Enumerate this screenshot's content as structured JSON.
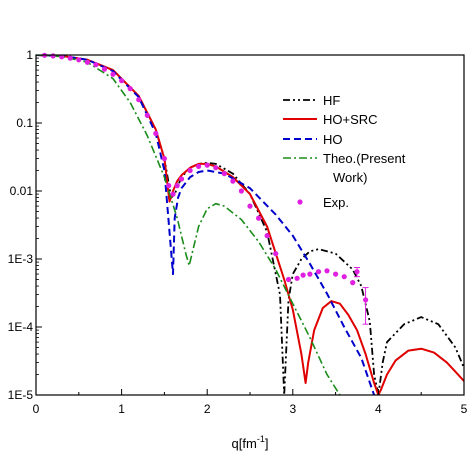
{
  "chart_data": {
    "type": "line",
    "title": "",
    "xlabel": "q[fm",
    "xlabel_sup": "-1",
    "xlabel_suffix": "]",
    "ylabel": "",
    "xlim": [
      0,
      5
    ],
    "ylim": [
      1e-05,
      1
    ],
    "yscale": "log",
    "grid": false,
    "legend_position": "right",
    "x_ticks": [
      {
        "value": 0,
        "label": "0"
      },
      {
        "value": 1,
        "label": "1"
      },
      {
        "value": 2,
        "label": "2"
      },
      {
        "value": 3,
        "label": "3"
      },
      {
        "value": 4,
        "label": "4"
      },
      {
        "value": 5,
        "label": "5"
      }
    ],
    "y_ticks": [
      {
        "value": 1,
        "label": "1"
      },
      {
        "value": 0.1,
        "label": "0.1"
      },
      {
        "value": 0.01,
        "label": "0.01"
      },
      {
        "value": 0.001,
        "label": "1E-3"
      },
      {
        "value": 0.0001,
        "label": "1E-4"
      },
      {
        "value": 1e-05,
        "label": "1E-5"
      }
    ],
    "series": [
      {
        "name": "HF",
        "color": "#000000",
        "style": "dash-dot-dot",
        "x": [
          0,
          0.3,
          0.6,
          0.9,
          1.2,
          1.4,
          1.5,
          1.58,
          1.62,
          1.7,
          1.8,
          1.9,
          2.0,
          2.1,
          2.3,
          2.5,
          2.7,
          2.85,
          2.9,
          2.95,
          3.0,
          3.1,
          3.2,
          3.3,
          3.5,
          3.7,
          3.8,
          3.9,
          3.95,
          4.0,
          4.05,
          4.1,
          4.3,
          4.5,
          4.7,
          4.9,
          5.0
        ],
        "y": [
          1,
          0.97,
          0.85,
          0.6,
          0.25,
          0.08,
          0.03,
          0.008,
          0.009,
          0.016,
          0.022,
          0.025,
          0.026,
          0.025,
          0.018,
          0.009,
          0.0025,
          0.0003,
          1e-05,
          0.00025,
          0.0006,
          0.001,
          0.0013,
          0.0014,
          0.0012,
          0.0007,
          0.0004,
          0.00012,
          2e-05,
          1e-05,
          3e-05,
          6e-05,
          0.00011,
          0.00014,
          0.00011,
          5e-05,
          2.5e-05
        ]
      },
      {
        "name": "HO+SRC",
        "color": "#e00000",
        "style": "solid",
        "x": [
          0,
          0.3,
          0.6,
          0.9,
          1.2,
          1.4,
          1.5,
          1.56,
          1.6,
          1.65,
          1.7,
          1.8,
          1.9,
          2.0,
          2.1,
          2.3,
          2.5,
          2.7,
          2.9,
          3.0,
          3.1,
          3.15,
          3.18,
          3.25,
          3.35,
          3.45,
          3.55,
          3.65,
          3.75,
          3.85,
          3.95,
          4.0,
          4.03,
          4.1,
          4.2,
          4.35,
          4.5,
          4.65,
          4.8,
          4.9,
          5.0
        ],
        "y": [
          1,
          0.97,
          0.85,
          0.6,
          0.25,
          0.08,
          0.03,
          0.007,
          0.01,
          0.014,
          0.017,
          0.022,
          0.025,
          0.025,
          0.023,
          0.016,
          0.009,
          0.003,
          0.0005,
          0.00018,
          4e-05,
          1.5e-05,
          3e-05,
          9e-05,
          0.00019,
          0.00024,
          0.00022,
          0.00015,
          9e-05,
          4e-05,
          1.5e-05,
          1e-05,
          1.2e-05,
          2e-05,
          3.2e-05,
          4.5e-05,
          4.8e-05,
          4.2e-05,
          3e-05,
          2.2e-05,
          1.6e-05
        ]
      },
      {
        "name": "HO",
        "color": "#0000cc",
        "style": "dashed",
        "x": [
          0,
          0.3,
          0.6,
          0.9,
          1.2,
          1.4,
          1.5,
          1.6,
          1.62,
          1.66,
          1.7,
          1.8,
          1.9,
          2.0,
          2.2,
          2.5,
          2.8,
          3.0,
          3.2,
          3.4,
          3.6,
          3.8,
          3.95
        ],
        "y": [
          1,
          0.97,
          0.85,
          0.58,
          0.24,
          0.07,
          0.02,
          0.0006,
          0.004,
          0.008,
          0.011,
          0.016,
          0.019,
          0.02,
          0.018,
          0.011,
          0.0045,
          0.0022,
          0.00085,
          0.00031,
          0.0001,
          3.5e-05,
          1e-05
        ]
      },
      {
        "name": "Theo.(Present\nWork)",
        "name_line1": "Theo.(Present",
        "name_line2": "Work)",
        "color": "#1a8c1a",
        "style": "dash-dot",
        "x": [
          0,
          0.3,
          0.6,
          0.9,
          1.1,
          1.3,
          1.5,
          1.65,
          1.75,
          1.79,
          1.83,
          1.9,
          2.0,
          2.1,
          2.2,
          2.4,
          2.6,
          2.8,
          3.0,
          3.2,
          3.4,
          3.55
        ],
        "y": [
          1,
          0.95,
          0.78,
          0.45,
          0.2,
          0.065,
          0.016,
          0.004,
          0.0012,
          0.0008,
          0.0013,
          0.003,
          0.0055,
          0.0065,
          0.006,
          0.0038,
          0.0018,
          0.0007,
          0.00022,
          7e-05,
          2e-05,
          1e-05
        ]
      }
    ],
    "experimental": {
      "name": "Exp.",
      "color": "#e020e0",
      "x": [
        0.1,
        0.2,
        0.3,
        0.4,
        0.5,
        0.6,
        0.7,
        0.8,
        0.9,
        1.0,
        1.1,
        1.2,
        1.3,
        1.4,
        1.5,
        1.55,
        1.6,
        1.65,
        1.7,
        1.8,
        1.9,
        2.0,
        2.1,
        2.2,
        2.3,
        2.4,
        2.5,
        2.6,
        2.7,
        2.8,
        2.95,
        3.05,
        3.12,
        3.2,
        3.3,
        3.4,
        3.5,
        3.6,
        3.7,
        3.75,
        3.85
      ],
      "y": [
        0.99,
        0.97,
        0.94,
        0.9,
        0.85,
        0.78,
        0.72,
        0.62,
        0.52,
        0.42,
        0.32,
        0.22,
        0.13,
        0.07,
        0.03,
        0.012,
        0.009,
        0.012,
        0.015,
        0.02,
        0.023,
        0.024,
        0.022,
        0.018,
        0.014,
        0.01,
        0.006,
        0.004,
        0.0022,
        0.0012,
        0.0005,
        0.00052,
        0.00058,
        0.0006,
        0.00065,
        0.00067,
        0.0006,
        0.00055,
        0.00045,
        0.00065,
        0.00025
      ],
      "error_bars": [
        {
          "x": 3.75,
          "low": 0.00055,
          "high": 0.00075
        },
        {
          "x": 3.85,
          "low": 0.00011,
          "high": 0.00038
        }
      ]
    }
  }
}
